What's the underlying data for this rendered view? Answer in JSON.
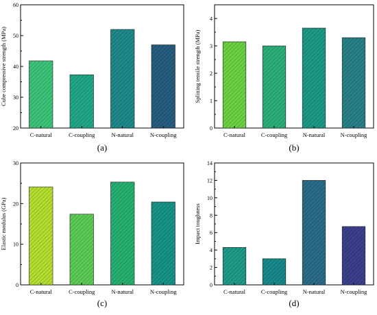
{
  "colors": {
    "c_natural_a": "#3cc47a",
    "c_coupling_a": "#22a889",
    "n_natural_a": "#1f8a8c",
    "n_coupling_a": "#275e80",
    "c_natural_b": "#6cd243",
    "c_coupling_b": "#2bb07a",
    "n_natural_b": "#1d9a86",
    "n_coupling_b": "#2a8088",
    "c_natural_c": "#b5df2e",
    "c_coupling_c": "#5ccc56",
    "n_natural_c": "#27b070",
    "n_coupling_c": "#169488",
    "c_natural_d": "#1f9b8a",
    "c_coupling_d": "#188a8c",
    "n_natural_d": "#2b6c8a",
    "n_coupling_d": "#3b3f8c"
  },
  "chart_data": [
    {
      "panel": "a",
      "type": "bar",
      "caption": "(a)",
      "categories": [
        "C-natural",
        "C-coupling",
        "N-natural",
        "N-coupling"
      ],
      "values": [
        41.8,
        37.3,
        52.0,
        47.0
      ],
      "ylabel": "Cube compressive strength (MPa)",
      "xlabel": "",
      "ylim": [
        20,
        60
      ],
      "yticks": [
        "20",
        "30",
        "40",
        "50",
        "60"
      ],
      "bar_colors": [
        "c_natural_a",
        "c_coupling_a",
        "n_natural_a",
        "n_coupling_a"
      ],
      "grid": false
    },
    {
      "panel": "b",
      "type": "bar",
      "caption": "(b)",
      "categories": [
        "C-natural",
        "C-coupling",
        "N-natural",
        "N-coupling"
      ],
      "values": [
        3.15,
        3.0,
        3.65,
        3.3
      ],
      "ylabel": "Splitting tensile strength (MPa)",
      "xlabel": "",
      "ylim": [
        0,
        4.5
      ],
      "yticks": [
        "0",
        "1",
        "2",
        "3",
        "4"
      ],
      "bar_colors": [
        "c_natural_b",
        "c_coupling_b",
        "n_natural_b",
        "n_coupling_b"
      ],
      "grid": false
    },
    {
      "panel": "c",
      "type": "bar",
      "caption": "(c)",
      "categories": [
        "C-natural",
        "C-coupling",
        "N-natural",
        "N-coupling"
      ],
      "values": [
        24.1,
        17.4,
        25.3,
        20.4
      ],
      "ylabel": "Elastic modulus (GPa)",
      "xlabel": "",
      "ylim": [
        0,
        30
      ],
      "yticks": [
        "0",
        "10",
        "20",
        "30"
      ],
      "bar_colors": [
        "c_natural_c",
        "c_coupling_c",
        "n_natural_c",
        "n_coupling_c"
      ],
      "grid": false
    },
    {
      "panel": "d",
      "type": "bar",
      "caption": "(d)",
      "categories": [
        "C-natural",
        "C-coupling",
        "N-natural",
        "N-coupling"
      ],
      "values": [
        4.3,
        3.0,
        12.0,
        6.7
      ],
      "ylabel": "Impact toughness",
      "xlabel": "",
      "ylim": [
        0,
        14
      ],
      "yticks": [
        "0",
        "2",
        "4",
        "6",
        "8",
        "10",
        "12",
        "14"
      ],
      "bar_colors": [
        "c_natural_d",
        "c_coupling_d",
        "n_natural_d",
        "n_coupling_d"
      ],
      "grid": false
    }
  ]
}
